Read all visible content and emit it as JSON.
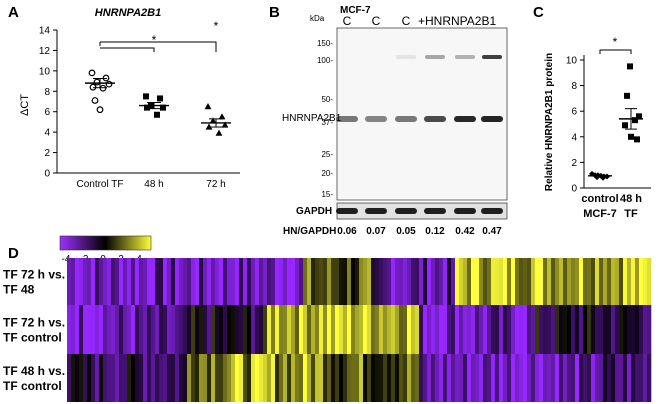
{
  "panels": {
    "a": "A",
    "b": "B",
    "c": "C",
    "d": "D"
  },
  "panel_a": {
    "title": "HNRNPA2B1",
    "ylabel": "ΔCT",
    "yticks": [
      "0",
      "2",
      "4",
      "6",
      "8",
      "10",
      "12",
      "14"
    ],
    "categories": [
      "Control TF",
      "48 h",
      "72 h"
    ],
    "sig": [
      "*",
      "*"
    ]
  },
  "panel_b": {
    "cell_line": "MCF-7",
    "kda": "kDa",
    "lanes": [
      "C",
      "C",
      "C",
      "+HNRNPA2B1"
    ],
    "markers": [
      "150-",
      "100-",
      "50-",
      "37-",
      "25-",
      "20-",
      "15-"
    ],
    "protein": "HNRNPA2B1",
    "gapdh": "GAPDH",
    "ratio_label": "HN/GAPDH",
    "ratios": [
      "0.06",
      "0.07",
      "0.05",
      "0.12",
      "0.42",
      "0.47"
    ]
  },
  "panel_c": {
    "ylabel": "Relative HNRNPA2B1 protein",
    "yticks": [
      "0",
      "2",
      "4",
      "6",
      "8",
      "10"
    ],
    "categories": [
      "control",
      "48 h"
    ],
    "sublabels": [
      "MCF-7",
      "TF"
    ],
    "sig": "*"
  },
  "panel_d": {
    "scale_ticks": [
      "-4",
      "-2",
      "0",
      "2",
      "4"
    ],
    "rows": [
      {
        "line1": "TF 72 h vs.",
        "line2": "TF 48"
      },
      {
        "line1": "TF 72 h vs.",
        "line2": "TF control"
      },
      {
        "line1": "TF 48 h vs.",
        "line2": "TF control"
      }
    ]
  },
  "chart_data": [
    {
      "type": "scatter",
      "title": "HNRNPA2B1",
      "ylabel": "ΔCT",
      "ylim": [
        0,
        14
      ],
      "categories": [
        "Control TF",
        "48 h",
        "72 h"
      ],
      "series": [
        {
          "name": "Control TF",
          "values": [
            9.8,
            9.3,
            8.9,
            8.7,
            8.4,
            8.3,
            7.1,
            6.2
          ],
          "mean": 8.8,
          "sem": 0.45
        },
        {
          "name": "48 h",
          "values": [
            7.5,
            7.3,
            6.6,
            6.4,
            6.4,
            5.7
          ],
          "mean": 6.6,
          "sem": 0.3
        },
        {
          "name": "72 h",
          "values": [
            6.5,
            5.5,
            5.1,
            4.7,
            4.5,
            3.9
          ],
          "mean": 4.9,
          "sem": 0.4
        }
      ]
    },
    {
      "type": "scatter",
      "ylabel": "Relative HNRNPA2B1 protein",
      "ylim": [
        0,
        10
      ],
      "categories": [
        "control",
        "48 h"
      ],
      "series": [
        {
          "name": "control",
          "values": [
            1.1,
            1.0,
            1.0,
            0.95,
            0.9,
            0.9,
            0.85,
            0.8
          ],
          "mean": 0.95,
          "sem": 0.04
        },
        {
          "name": "48 h",
          "values": [
            9.5,
            7.2,
            5.6,
            5.3,
            4.9,
            4.0,
            3.8
          ],
          "mean": 5.4,
          "sem": 0.8
        }
      ]
    }
  ]
}
